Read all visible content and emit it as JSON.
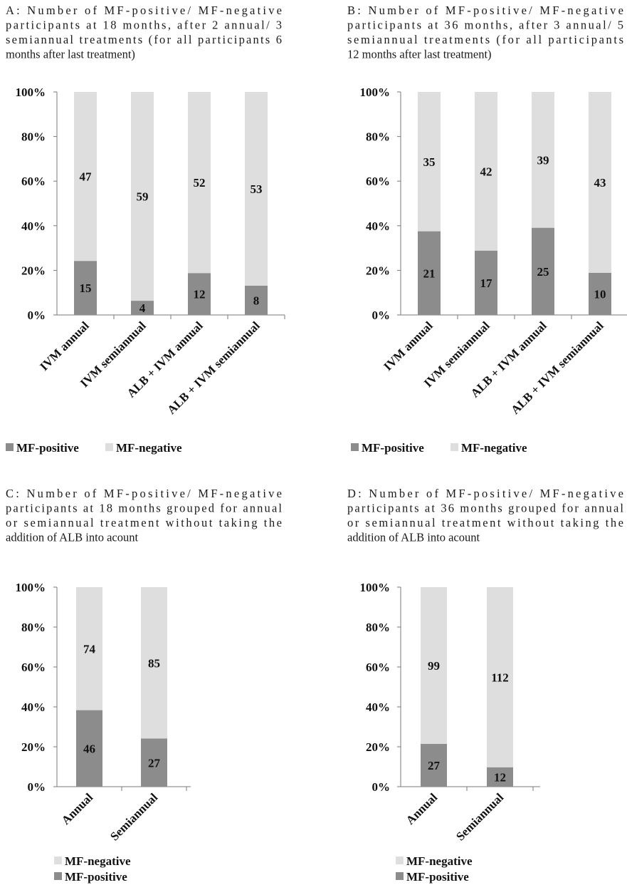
{
  "colors": {
    "positive": "#8c8c8c",
    "negative": "#dedede",
    "axis": "#7a7a7a"
  },
  "chart_data": [
    {
      "type": "bar",
      "stacked": "percent",
      "title": "A: Number of MF-positive/ MF-negative participants at 18 months, after 2 annual/ 3 semiannual treatments (for all participants 6 months after last treatment)",
      "title_lines": [
        "A: Number of MF-positive/ MF-negative",
        "participants at 18 months, after 2 annual/ 3",
        "semiannual treatments (for all participants 6",
        "months after last treatment)"
      ],
      "categories": [
        "IVM annual",
        "IVM semiannual",
        "ALB + IVM annual",
        "ALB + IVM semiannual"
      ],
      "series": [
        {
          "name": "MF-positive",
          "values": [
            15,
            4,
            12,
            8
          ]
        },
        {
          "name": "MF-negative",
          "values": [
            47,
            59,
            52,
            53
          ]
        }
      ],
      "yticks": [
        "0%",
        "20%",
        "40%",
        "60%",
        "80%",
        "100%"
      ],
      "ylim": [
        0,
        100
      ],
      "legend_order": [
        "MF-positive",
        "MF-negative"
      ],
      "legend_position": "bottom"
    },
    {
      "type": "bar",
      "stacked": "percent",
      "title": "B: Number of MF-positive/ MF-negative participants at 36 months, after 3 annual/ 5 semiannual treatments (for all participants 12 months after last treatment)",
      "title_lines": [
        "B: Number of MF-positive/ MF-negative",
        "participants at 36 months, after 3 annual/ 5",
        "semiannual treatments (for all participants",
        "12 months after last treatment)"
      ],
      "categories": [
        "IVM annual",
        "IVM semiannual",
        "ALB + IVM annual",
        "ALB + IVM semiannual"
      ],
      "series": [
        {
          "name": "MF-positive",
          "values": [
            21,
            17,
            25,
            10
          ]
        },
        {
          "name": "MF-negative",
          "values": [
            35,
            42,
            39,
            43
          ]
        }
      ],
      "yticks": [
        "0%",
        "20%",
        "40%",
        "60%",
        "80%",
        "100%"
      ],
      "ylim": [
        0,
        100
      ],
      "legend_order": [
        "MF-positive",
        "MF-negative"
      ],
      "legend_position": "bottom"
    },
    {
      "type": "bar",
      "stacked": "percent",
      "title": "C: Number of MF-positive/ MF-negative participants at 18 months grouped for annual or semiannual treatment without taking the addition of ALB into acount",
      "title_lines": [
        "C: Number of MF-positive/ MF-negative",
        "participants at 18 months grouped for annual",
        "or semiannual treatment without taking the",
        "addition of ALB into acount"
      ],
      "categories": [
        "Annual",
        "Semiannual"
      ],
      "series": [
        {
          "name": "MF-positive",
          "values": [
            46,
            27
          ]
        },
        {
          "name": "MF-negative",
          "values": [
            74,
            85
          ]
        }
      ],
      "yticks": [
        "0%",
        "20%",
        "40%",
        "60%",
        "80%",
        "100%"
      ],
      "ylim": [
        0,
        100
      ],
      "legend_order": [
        "MF-negative",
        "MF-positive"
      ],
      "legend_position": "bottom"
    },
    {
      "type": "bar",
      "stacked": "percent",
      "title": "D: Number of MF-positive/ MF-negative participants at 36 months grouped for annual or semiannual treatment without taking the addition of ALB into acount",
      "title_lines": [
        "D: Number of MF-positive/ MF-negative",
        "participants at 36 months grouped for annual",
        "or semiannual treatment without taking the",
        "addition of ALB into acount"
      ],
      "categories": [
        "Annual",
        "Semiannual"
      ],
      "series": [
        {
          "name": "MF-positive",
          "values": [
            27,
            12
          ]
        },
        {
          "name": "MF-negative",
          "values": [
            99,
            112
          ]
        }
      ],
      "yticks": [
        "0%",
        "20%",
        "40%",
        "60%",
        "80%",
        "100%"
      ],
      "ylim": [
        0,
        100
      ],
      "legend_order": [
        "MF-negative",
        "MF-positive"
      ],
      "legend_position": "bottom"
    }
  ]
}
